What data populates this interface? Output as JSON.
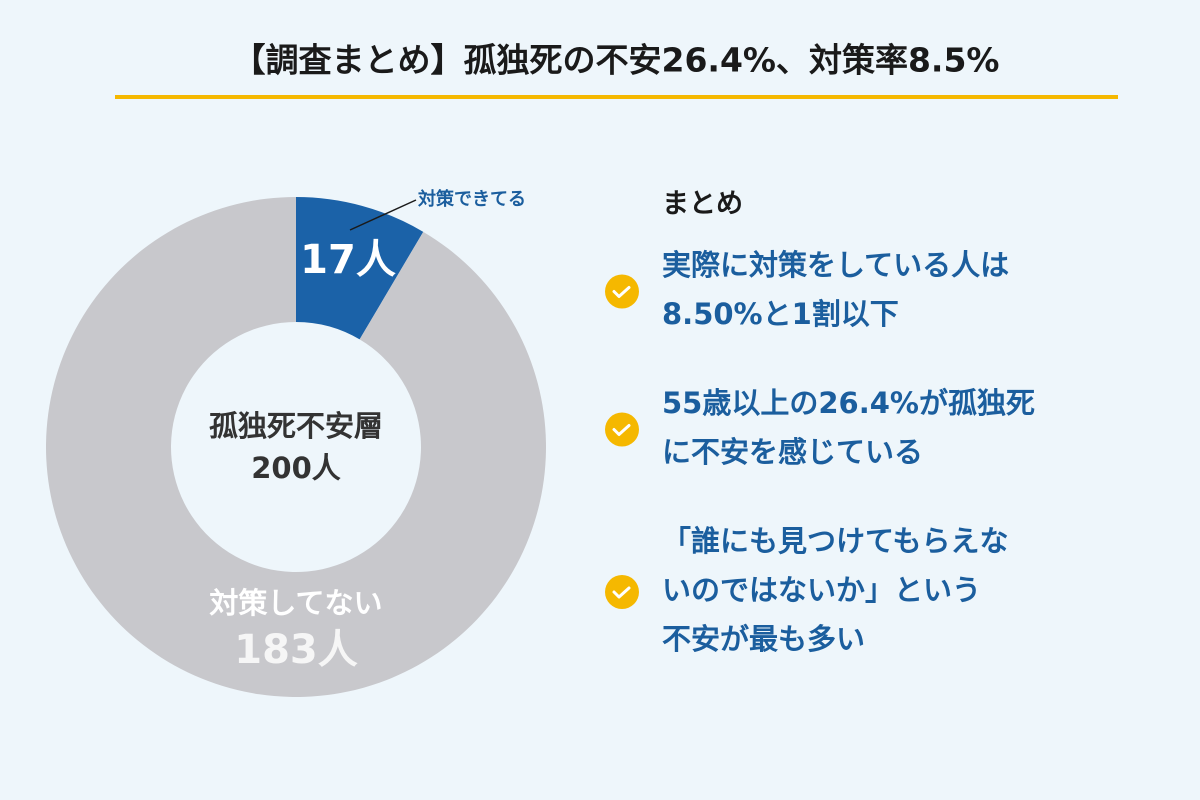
{
  "chart_data": {
    "type": "donut",
    "title": "【調査まとめ】孤独死の不安26.4%、対策率8.5%",
    "categories": [
      "対策できてる",
      "対策してない"
    ],
    "values": [
      17,
      183
    ],
    "value_labels": [
      "17人",
      "183人"
    ],
    "colors": [
      "#1b62a8",
      "#c8c8cc"
    ],
    "center_text": [
      "孤独死不安層",
      "200人"
    ]
  },
  "summary": {
    "heading": "まとめ",
    "items": [
      [
        "実際に対策をしている人は",
        "8.50%と1割以下"
      ],
      [
        "55歳以上の26.4%が孤独死",
        "に不安を感じている"
      ],
      [
        "「誰にも見つけてもらえな",
        "いのではないか」という",
        "不安が最も多い"
      ]
    ]
  }
}
